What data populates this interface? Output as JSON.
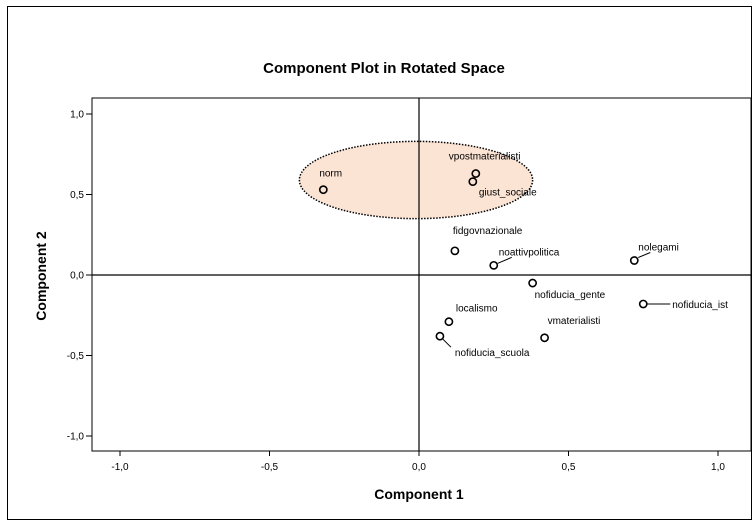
{
  "chart_data": {
    "type": "scatter",
    "title": "Component Plot in Rotated Space",
    "xlabel": "Component 1",
    "ylabel": "Component 2",
    "xlim": [
      -1.0,
      1.0
    ],
    "ylim": [
      -1.0,
      1.0
    ],
    "xticks": [
      "-1,0",
      "-0,5",
      "0,0",
      "0,5",
      "1,0"
    ],
    "yticks": [
      "1,0",
      "0,5",
      "0,0",
      "-0,5",
      "-1,0"
    ],
    "grid": false,
    "points": [
      {
        "label": "norm",
        "x": -0.32,
        "y": 0.53
      },
      {
        "label": "vpostmaterialisti",
        "x": 0.19,
        "y": 0.63
      },
      {
        "label": "giust_sociale",
        "x": 0.18,
        "y": 0.58
      },
      {
        "label": "fidgovnazionale",
        "x": 0.12,
        "y": 0.15
      },
      {
        "label": "noattivpolitica",
        "x": 0.25,
        "y": 0.06
      },
      {
        "label": "nolegami",
        "x": 0.72,
        "y": 0.09
      },
      {
        "label": "nofiducia_gente",
        "x": 0.38,
        "y": -0.05
      },
      {
        "label": "nofiducia_ist",
        "x": 0.75,
        "y": -0.18
      },
      {
        "label": "localismo",
        "x": 0.1,
        "y": -0.29
      },
      {
        "label": "nofiducia_scuola",
        "x": 0.07,
        "y": -0.38
      },
      {
        "label": "vmaterialisti",
        "x": 0.42,
        "y": -0.39
      }
    ],
    "highlight_ellipse": {
      "fill": "#fbe4d4",
      "stroke": "#000000",
      "center": {
        "x": -0.01,
        "y": 0.59
      },
      "rx": 0.39,
      "ry": 0.24
    }
  }
}
